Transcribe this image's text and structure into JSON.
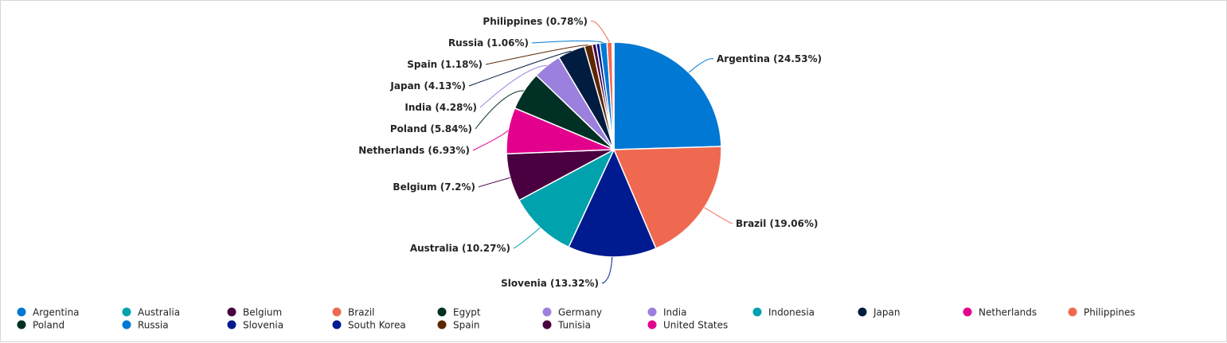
{
  "chart_data": {
    "type": "pie",
    "slices": [
      {
        "label": "Argentina",
        "value": 24.53,
        "color": "#0078d4",
        "label_text": "Argentina (24.53%)"
      },
      {
        "label": "Brazil",
        "value": 19.06,
        "color": "#ef6950",
        "label_text": "Brazil (19.06%)"
      },
      {
        "label": "Slovenia",
        "value": 13.32,
        "color": "#001a8f",
        "label_text": "Slovenia (13.32%)"
      },
      {
        "label": "Australia",
        "value": 10.27,
        "color": "#00a2ad",
        "label_text": "Australia (10.27%)"
      },
      {
        "label": "Belgium",
        "value": 7.2,
        "color": "#4a0040",
        "label_text": "Belgium (7.2%)"
      },
      {
        "label": "Netherlands",
        "value": 6.93,
        "color": "#e3008c",
        "label_text": "Netherlands (6.93%)"
      },
      {
        "label": "Poland",
        "value": 5.84,
        "color": "#013024",
        "label_text": "Poland (5.84%)"
      },
      {
        "label": "India",
        "value": 4.28,
        "color": "#9b80dd",
        "label_text": "India (4.28%)"
      },
      {
        "label": "Japan",
        "value": 4.13,
        "color": "#001c40",
        "label_text": "Japan (4.13%)"
      },
      {
        "label": "Spain",
        "value": 1.18,
        "color": "#5c2600",
        "label_text": "Spain (1.18%)"
      },
      {
        "label": "Tunisia",
        "value": 0.6,
        "color": "#4a0040",
        "label_text": ""
      },
      {
        "label": "South Korea",
        "value": 0.55,
        "color": "#001a8f",
        "label_text": ""
      },
      {
        "label": "Russia",
        "value": 1.06,
        "color": "#0078d4",
        "label_text": "Russia (1.06%)"
      },
      {
        "label": "Philippines",
        "value": 0.78,
        "color": "#ef6950",
        "label_text": "Philippines (0.78%)"
      },
      {
        "label": "United States",
        "value": 0.12,
        "color": "#e3008c",
        "label_text": ""
      },
      {
        "label": "Indonesia",
        "value": 0.08,
        "color": "#00a2ad",
        "label_text": ""
      },
      {
        "label": "Germany",
        "value": 0.04,
        "color": "#9b80dd",
        "label_text": ""
      },
      {
        "label": "Egypt",
        "value": 0.02,
        "color": "#013024",
        "label_text": ""
      }
    ],
    "legend": {
      "placement": "bottom",
      "items": [
        {
          "label": "Argentina",
          "color": "#0078d4"
        },
        {
          "label": "Australia",
          "color": "#00a2ad"
        },
        {
          "label": "Belgium",
          "color": "#4a0040"
        },
        {
          "label": "Brazil",
          "color": "#ef6950"
        },
        {
          "label": "Egypt",
          "color": "#013024"
        },
        {
          "label": "Germany",
          "color": "#9b80dd"
        },
        {
          "label": "India",
          "color": "#9b80dd"
        },
        {
          "label": "Indonesia",
          "color": "#00a2ad"
        },
        {
          "label": "Japan",
          "color": "#001c40"
        },
        {
          "label": "Netherlands",
          "color": "#e3008c"
        },
        {
          "label": "Philippines",
          "color": "#ef6950"
        },
        {
          "label": "Poland",
          "color": "#013024"
        },
        {
          "label": "Russia",
          "color": "#0078d4"
        },
        {
          "label": "Slovenia",
          "color": "#001a8f"
        },
        {
          "label": "South Korea",
          "color": "#001a8f"
        },
        {
          "label": "Spain",
          "color": "#5c2600"
        },
        {
          "label": "Tunisia",
          "color": "#4a0040"
        },
        {
          "label": "United States",
          "color": "#e3008c"
        }
      ]
    }
  }
}
